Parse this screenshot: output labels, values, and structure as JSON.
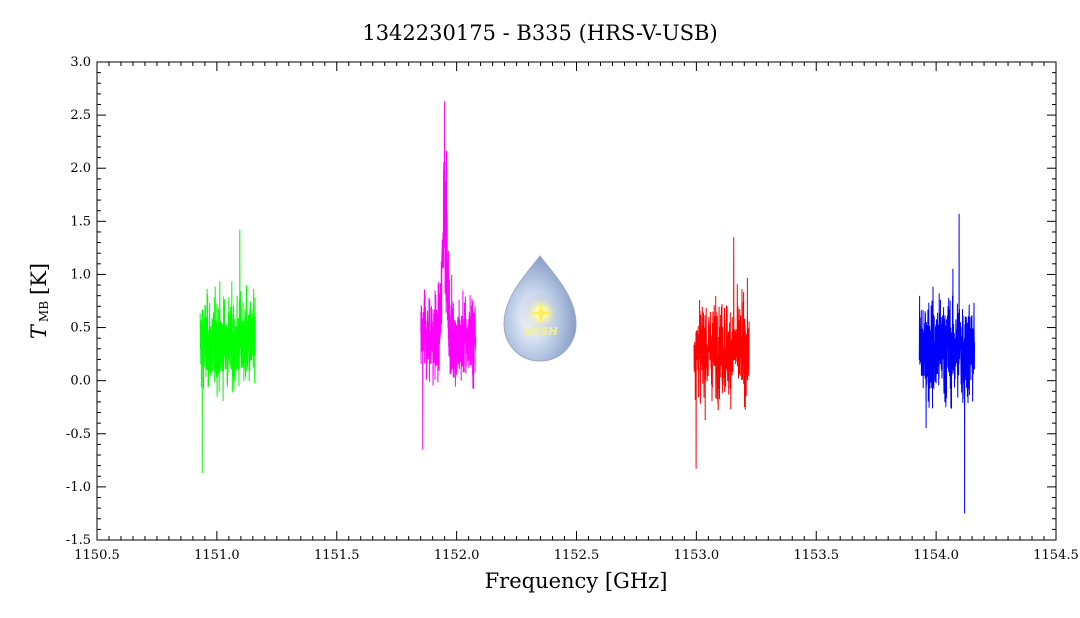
{
  "chart_data": {
    "type": "line",
    "title": "1342230175 - B335 (HRS-V-USB)",
    "xlabel": "Frequency [GHz]",
    "ylabel_main": "T",
    "ylabel_sub": "MB",
    "ylabel_unit": "[K]",
    "xlim": [
      1150.5,
      1154.5
    ],
    "ylim": [
      -1.5,
      3.0
    ],
    "x_ticks": [
      "1150.5",
      "1151.0",
      "1151.5",
      "1152.0",
      "1152.5",
      "1153.0",
      "1153.5",
      "1154.0",
      "1154.5"
    ],
    "y_ticks": [
      "-1.5",
      "-1.0",
      "-0.5",
      "0.0",
      "0.5",
      "1.0",
      "1.5",
      "2.0",
      "2.5",
      "3.0"
    ],
    "grid": false,
    "series": [
      {
        "color": "#00ff00",
        "x_range": [
          1150.93,
          1151.16
        ],
        "mean": 0.35,
        "min": -0.87,
        "max": 1.42,
        "noise": 0.3
      },
      {
        "color": "#ff00ff",
        "x_range": [
          1151.85,
          1152.08
        ],
        "mean": 0.4,
        "min": -0.65,
        "max": 2.63,
        "noise": 0.3,
        "peak_x": 1151.95,
        "peak": 2.63
      },
      {
        "color": "#ff0000",
        "x_range": [
          1152.99,
          1153.22
        ],
        "mean": 0.3,
        "min": -0.83,
        "max": 1.35,
        "noise": 0.3
      },
      {
        "color": "#0000ff",
        "x_range": [
          1153.93,
          1154.16
        ],
        "mean": 0.3,
        "min": -1.25,
        "max": 1.57,
        "noise": 0.35
      }
    ]
  },
  "logo": {
    "text": "WISH"
  }
}
